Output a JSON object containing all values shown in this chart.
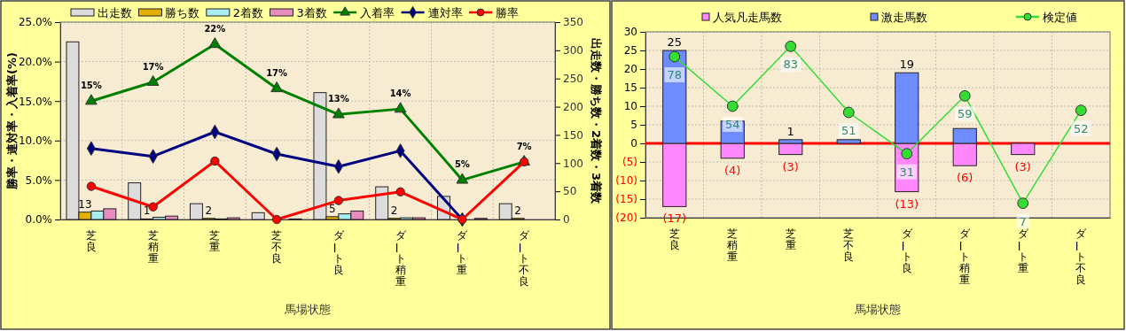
{
  "chart_data": [
    {
      "type": "bar",
      "categories": [
        "芝良",
        "芝稍重",
        "芝重",
        "芝不良",
        "ダート良",
        "ダート稍重",
        "ダート重",
        "ダート不良"
      ],
      "xlabel": "馬場状態",
      "ylabel": "勝率・連対率・入着率(%)",
      "y2label": "出走数・勝ち数・2着数・3着数",
      "ylim": [
        0,
        25
      ],
      "yticks": [
        {
          "value": 0,
          "label": "0.0%"
        },
        {
          "value": 5,
          "label": "5.0%"
        },
        {
          "value": 10,
          "label": "10.0%"
        },
        {
          "value": 15,
          "label": "15.0%"
        },
        {
          "value": 20,
          "label": "20.0%"
        },
        {
          "value": 25,
          "label": "25.0%"
        }
      ],
      "y2lim": [
        0,
        350
      ],
      "y2ticks": [
        0,
        50,
        100,
        150,
        200,
        250,
        300,
        350
      ],
      "grid": true,
      "legend": "top",
      "series": [
        {
          "name": "出走数",
          "axis": "y2",
          "color": "#dcdcdc",
          "values": [
            315,
            65,
            28,
            12,
            225,
            58,
            41,
            28
          ]
        },
        {
          "name": "勝ち数",
          "axis": "y2",
          "color": "#e6b000",
          "values": [
            13,
            1,
            2,
            0,
            5,
            2,
            0,
            2
          ],
          "value_labels": [
            "13",
            "1",
            "2",
            null,
            "5",
            "2",
            null,
            "2"
          ]
        },
        {
          "name": "2着数",
          "axis": "y2",
          "color": "#a8eef0",
          "values": [
            15,
            4,
            1,
            null,
            10,
            3,
            0,
            0
          ]
        },
        {
          "name": "3着数",
          "axis": "y2",
          "color": "#e88cc0",
          "values": [
            19,
            6,
            3,
            1,
            15,
            3,
            2,
            0
          ]
        },
        {
          "name": "入着率",
          "type": "line",
          "axis": "y",
          "color": "#008000",
          "marker": "triangle",
          "values": [
            15.0,
            17.4,
            22.2,
            16.6,
            13.3,
            14.0,
            5.0,
            7.3
          ],
          "value_labels": [
            "15%",
            "17%",
            "22%",
            "17%",
            "13%",
            "14%",
            "5%",
            "7%"
          ]
        },
        {
          "name": "連対率",
          "type": "line",
          "axis": "y",
          "color": "#000080",
          "marker": "diamond",
          "values": [
            9.0,
            8.0,
            11.1,
            8.3,
            6.7,
            8.7,
            0,
            null
          ]
        },
        {
          "name": "勝率",
          "type": "line",
          "axis": "y",
          "color": "#ff0000",
          "marker": "circle",
          "values": [
            4.2,
            1.6,
            7.4,
            0,
            2.4,
            3.5,
            0,
            7.3
          ]
        }
      ]
    },
    {
      "type": "bar",
      "stacked": true,
      "categories": [
        "芝良",
        "芝稍重",
        "芝重",
        "芝不良",
        "ダート良",
        "ダート稍重",
        "ダート重",
        "ダート不良"
      ],
      "xlabel": "馬場状態",
      "ylim": [
        -20,
        30
      ],
      "yticks": [
        {
          "value": -20,
          "label": "(20)"
        },
        {
          "value": -15,
          "label": "(15)"
        },
        {
          "value": -10,
          "label": "(10)"
        },
        {
          "value": -5,
          "label": "(5)"
        },
        0,
        5,
        10,
        15,
        20,
        25,
        30
      ],
      "grid": true,
      "legend": "top",
      "ref_lines": [
        {
          "axis": "y",
          "value": 0,
          "color": "#ff0000"
        }
      ],
      "series": [
        {
          "name": "人気凡走馬数",
          "color": "#ff88ff",
          "values": [
            -17,
            -4,
            -3,
            0,
            -13,
            -6,
            -3,
            0
          ],
          "value_labels": [
            "(17)",
            "(4)",
            "(3)",
            null,
            "(13)",
            "(6)",
            "(3)",
            null
          ]
        },
        {
          "name": "激走馬数",
          "color": "#6f8cff",
          "values": [
            25,
            6,
            1,
            1,
            19,
            4,
            0,
            0
          ],
          "value_labels": [
            "25",
            null,
            "1",
            null,
            "19",
            null,
            null,
            null
          ]
        },
        {
          "name": "検定値",
          "type": "line",
          "axis": "y2",
          "color": "#33dd33",
          "marker": "circle",
          "values": [
            78,
            54,
            83,
            51,
            31,
            59,
            7,
            52
          ]
        }
      ],
      "y2lim": [
        0,
        90
      ],
      "data_labels": true
    }
  ]
}
